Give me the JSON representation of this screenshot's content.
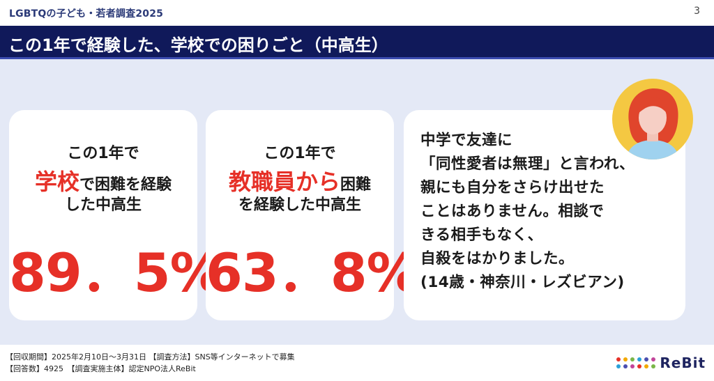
{
  "header": {
    "survey_title": "LGBTQの子ども・若者調査2025",
    "page_number": "3",
    "banner_title": "この1年で経験した、学校での困りごと（中高生）"
  },
  "cards": [
    {
      "line1": "この1年で",
      "line2_emph": "学校",
      "line2_rest": "で困難を経験",
      "line3": "した中高生",
      "value": "89．5%"
    },
    {
      "line1": "この1年で",
      "line2_emph": "教職員から",
      "line2_rest": "困難",
      "line3": "を経験した中高生",
      "value": "63．8%"
    }
  ],
  "quote": {
    "lines": [
      "中学で友達に",
      "「同性愛者は無理」と言われ、",
      "親にも自分をさらけ出せた",
      "ことはありません。相談で",
      "きる相手もなく、",
      "自殺をはかりました。",
      "(14歳・神奈川・レズビアン)"
    ]
  },
  "footer": {
    "line1": "【回収期間】2025年2月10日〜3月31日 【調査方法】SNS等インターネットで募集",
    "line2": "【回答数】4925　【調査実施主体】認定NPO法人ReBit",
    "logo_text": "ReBit",
    "logo_colors": [
      "#e63027",
      "#f2a900",
      "#7ab648",
      "#2aa1d9",
      "#4b4fb0",
      "#c2449a"
    ]
  },
  "colors": {
    "accent_red": "#e63027",
    "banner_navy": "#10195a",
    "content_bg": "#e4e9f6"
  },
  "icons": [
    "avatar-illustration",
    "rebit-logo-icon"
  ]
}
